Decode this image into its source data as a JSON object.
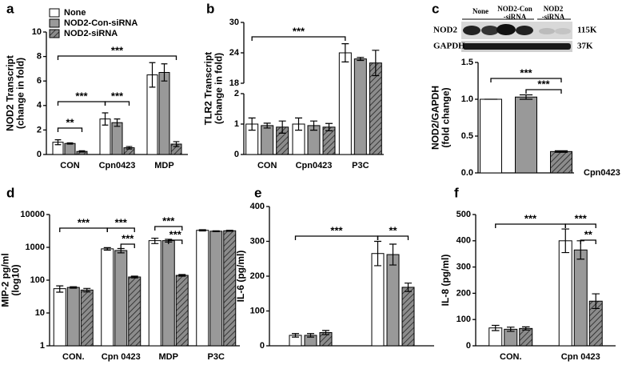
{
  "chart_data": [
    {
      "type": "bar",
      "label": "a",
      "ylabel": [
        "NOD2 Transcript",
        "(change in fold)"
      ],
      "categories": [
        "CON",
        "Cpn0423",
        "MDP"
      ],
      "series": [
        {
          "name": "None",
          "color": "#ffffff",
          "values": [
            1.0,
            2.9,
            6.5
          ],
          "errors": [
            0.2,
            0.5,
            1.0
          ]
        },
        {
          "name": "NOD2-Con-siRNA",
          "color": "#999999",
          "values": [
            0.9,
            2.6,
            6.7
          ],
          "errors": [
            0.05,
            0.3,
            0.7
          ]
        },
        {
          "name": "NOD2-siRNA",
          "color": "#8c8c8c",
          "hatch": true,
          "values": [
            0.25,
            0.55,
            0.85
          ],
          "errors": [
            0.05,
            0.1,
            0.2
          ]
        }
      ],
      "ylim": [
        0,
        10
      ],
      "yticks": [
        0,
        2,
        4,
        6,
        8,
        10
      ],
      "annotations": [
        "**",
        "***",
        "***",
        "***"
      ]
    },
    {
      "type": "bar",
      "label": "b",
      "ylabel": [
        "TLR2 Transcript",
        "(change in fold)"
      ],
      "categories": [
        "CON",
        "Cpn0423",
        "P3C"
      ],
      "series": [
        {
          "color": "#ffffff",
          "values": [
            1.0,
            1.0,
            24
          ],
          "errors": [
            0.2,
            0.2,
            1.8
          ]
        },
        {
          "color": "#999999",
          "values": [
            0.95,
            0.95,
            22.8
          ],
          "errors": [
            0.08,
            0.15,
            0.3
          ]
        },
        {
          "color": "#8c8c8c",
          "hatch": true,
          "values": [
            0.9,
            0.9,
            22
          ],
          "errors": [
            0.2,
            0.12,
            2.5
          ]
        }
      ],
      "ylim": [
        0,
        30
      ],
      "y_break": [
        2,
        18
      ],
      "yticks": [
        0,
        1,
        2,
        18,
        24,
        30
      ],
      "annotations": [
        "***"
      ]
    },
    {
      "type": "bar",
      "label": "c",
      "ylabel": [
        "NOD2/GAPDH",
        "(fold change)"
      ],
      "blot": {
        "lanes": [
          "None",
          "NOD2-Con",
          "-siRNA",
          "NOD2",
          "-siRNA"
        ],
        "rows": [
          "NOD2",
          "GAPDH"
        ],
        "sizes": [
          "115K",
          "37K"
        ]
      },
      "categories": [
        "Cpn0423"
      ],
      "series": [
        {
          "color": "#ffffff",
          "values": [
            1.0
          ],
          "errors": [
            0.0
          ]
        },
        {
          "color": "#999999",
          "values": [
            1.03
          ],
          "errors": [
            0.03
          ]
        },
        {
          "color": "#8c8c8c",
          "hatch": true,
          "values": [
            0.29
          ],
          "errors": [
            0.01
          ]
        }
      ],
      "ylim": [
        0,
        1.5
      ],
      "yticks": [
        {
          "value": 0,
          "label": "0.0"
        },
        {
          "value": 0.5,
          "label": "0.5"
        },
        {
          "value": 1,
          "label": "1.0"
        },
        {
          "value": 1.5,
          "label": "1.5"
        }
      ],
      "annotations": [
        "***",
        "***"
      ]
    },
    {
      "type": "bar",
      "label": "d",
      "ylabel": [
        "MIP-2 pg/ml",
        "(log10)"
      ],
      "log_scale": true,
      "categories": [
        "CON.",
        "Cpn 0423",
        "MDP",
        "P3C"
      ],
      "series": [
        {
          "color": "#ffffff",
          "values": [
            55,
            900,
            1600,
            3300
          ],
          "errors": [
            12,
            80,
            300,
            150
          ]
        },
        {
          "color": "#999999",
          "values": [
            60,
            800,
            1600,
            3100
          ],
          "errors": [
            3,
            120,
            150,
            100
          ]
        },
        {
          "color": "#8c8c8c",
          "hatch": true,
          "values": [
            50,
            125,
            140,
            3200
          ],
          "errors": [
            6,
            8,
            8,
            100
          ]
        }
      ],
      "ylim": [
        1,
        10000
      ],
      "yticks": [
        1,
        10,
        100,
        1000,
        10000
      ],
      "annotations": [
        "***",
        "***",
        "***",
        "***",
        "***"
      ]
    },
    {
      "type": "bar",
      "label": "e",
      "ylabel": [
        "IL-6 (pg/ml)"
      ],
      "categories": [
        null,
        null
      ],
      "series": [
        {
          "color": "#ffffff",
          "values": [
            30,
            265
          ],
          "errors": [
            5,
            35
          ]
        },
        {
          "color": "#999999",
          "values": [
            30,
            262
          ],
          "errors": [
            5,
            30
          ]
        },
        {
          "color": "#8c8c8c",
          "hatch": true,
          "values": [
            38,
            168
          ],
          "errors": [
            6,
            12
          ]
        }
      ],
      "ylim": [
        0,
        400
      ],
      "yticks": [
        0,
        100,
        200,
        300,
        400
      ],
      "annotations": [
        "***",
        "**"
      ]
    },
    {
      "type": "bar",
      "label": "f",
      "ylabel": [
        "IL-8 (pg/ml)"
      ],
      "categories": [
        "CON.",
        "Cpn 0423"
      ],
      "series": [
        {
          "color": "#ffffff",
          "values": [
            68,
            400
          ],
          "errors": [
            10,
            45
          ]
        },
        {
          "color": "#999999",
          "values": [
            63,
            365
          ],
          "errors": [
            8,
            35
          ]
        },
        {
          "color": "#8c8c8c",
          "hatch": true,
          "values": [
            66,
            170
          ],
          "errors": [
            6,
            28
          ]
        }
      ],
      "ylim": [
        0,
        500
      ],
      "yticks": [
        0,
        100,
        200,
        300,
        400,
        500
      ],
      "annotations": [
        "***",
        "***",
        "**"
      ]
    }
  ]
}
